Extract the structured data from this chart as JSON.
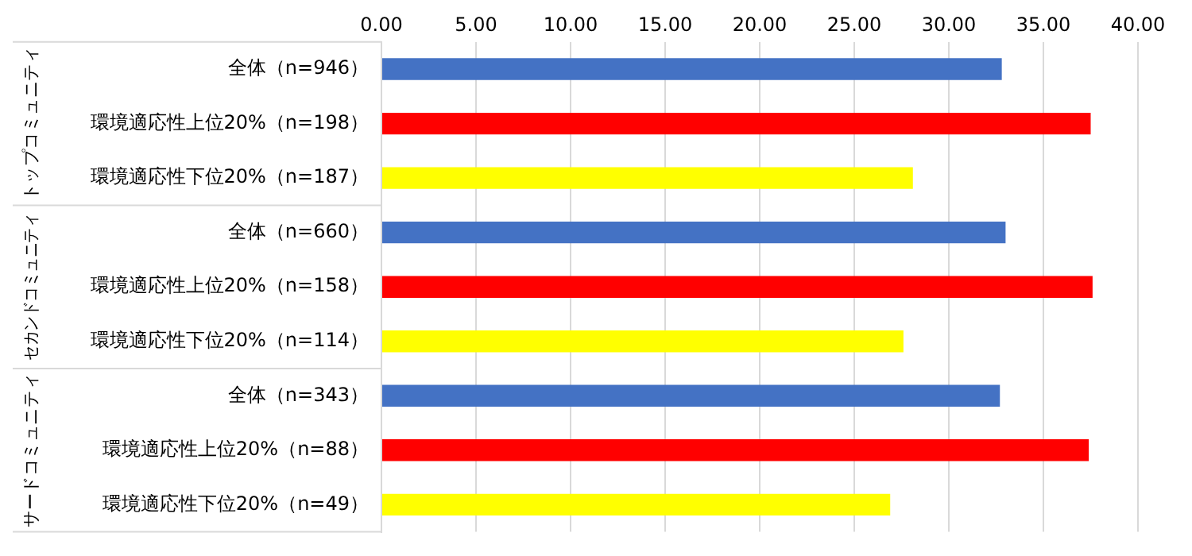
{
  "chart_data": {
    "type": "bar",
    "orientation": "horizontal",
    "categories": [
      "全体（n=946）",
      "環境適応性上位20%（n=198）",
      "環境適応性下位20%（n=187）",
      "全体（n=660）",
      "環境適応性上位20%（n=158）",
      "環境適応性下位20%（n=114）",
      "全体（n=343）",
      "環境適応性上位20%（n=88）",
      "環境適応性下位20%（n=49）"
    ],
    "values": [
      32.8,
      37.5,
      28.1,
      33.0,
      37.6,
      27.6,
      32.7,
      37.4,
      26.9
    ],
    "colors": [
      "#4472c4",
      "#ff0000",
      "#ffff00",
      "#4472c4",
      "#ff0000",
      "#ffff00",
      "#4472c4",
      "#ff0000",
      "#ffff00"
    ],
    "xlim": [
      0,
      40
    ],
    "xticks": [
      {
        "value": 0,
        "label": "0.00"
      },
      {
        "value": 5,
        "label": "5.00"
      },
      {
        "value": 10,
        "label": "10.00"
      },
      {
        "value": 15,
        "label": "15.00"
      },
      {
        "value": 20,
        "label": "20.00"
      },
      {
        "value": 25,
        "label": "25.00"
      },
      {
        "value": 30,
        "label": "30.00"
      },
      {
        "value": 35,
        "label": "35.00"
      },
      {
        "value": 40,
        "label": "40.00"
      }
    ],
    "annotations": [
      "トップコミュニティ",
      "セカンドコミュニティ",
      "サードコミュニティ"
    ],
    "grid": "x",
    "legend": false
  }
}
